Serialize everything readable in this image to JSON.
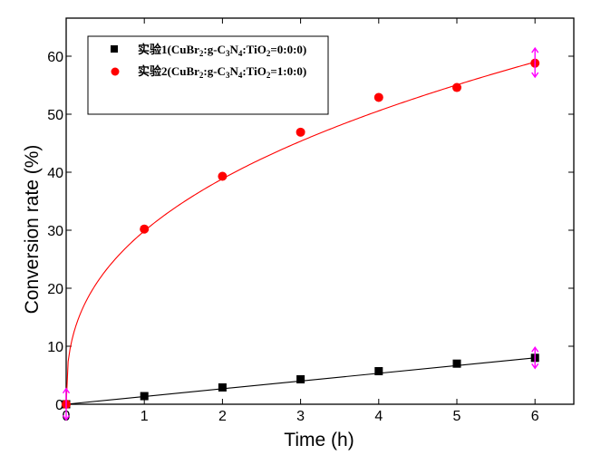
{
  "chart_data": {
    "type": "scatter",
    "xlabel": "Time (h)",
    "ylabel": "Conversion rate (%)",
    "xlim": [
      0,
      6.5
    ],
    "ylim": [
      0,
      65
    ],
    "xticks": [
      0,
      1,
      2,
      3,
      4,
      5,
      6
    ],
    "yticks": [
      0,
      10,
      20,
      30,
      40,
      50,
      60
    ],
    "grid": false,
    "legend_position": "top-left",
    "series": [
      {
        "name": "实验1(CuBr2:g-C3N4:TiO2=0:0:0)",
        "legend_parts": {
          "lead": "实验1(CuBr",
          "s1": "2",
          "m1": ":g-C",
          "s2": "3",
          "m2": "N",
          "s3": "4",
          "m3": ":TiO",
          "s4": "2",
          "tail": "=0:0:0)"
        },
        "marker": "square",
        "color": "#000000",
        "fit": "linear",
        "x": [
          0,
          1,
          2,
          3,
          4,
          5,
          6
        ],
        "y": [
          0,
          1.4,
          2.9,
          4.3,
          5.7,
          7.0,
          8.0
        ],
        "error_bar_x": 6,
        "error_bar_range": [
          6.2,
          9.8
        ]
      },
      {
        "name": "实验2(CuBr2:g-C3N4:TiO2=1:0:0)",
        "legend_parts": {
          "lead": "实验2(CuBr",
          "s1": "2",
          "m1": ":g-C",
          "s2": "3",
          "m2": "N",
          "s3": "4",
          "m3": ":TiO",
          "s4": "2",
          "tail": "=1:0:0)"
        },
        "marker": "circle",
        "color": "#ff0000",
        "fit": "curve",
        "x": [
          0,
          1,
          2,
          3,
          4,
          5,
          6
        ],
        "y": [
          0,
          30.2,
          39.3,
          46.9,
          52.9,
          54.6,
          58.8
        ],
        "error_bar_x": 6,
        "error_bar_range": [
          56.4,
          61.4
        ]
      }
    ],
    "origin_error_bar_range": [
      -2.7,
      2.7
    ],
    "error_bar_color": "#ff00ff"
  }
}
